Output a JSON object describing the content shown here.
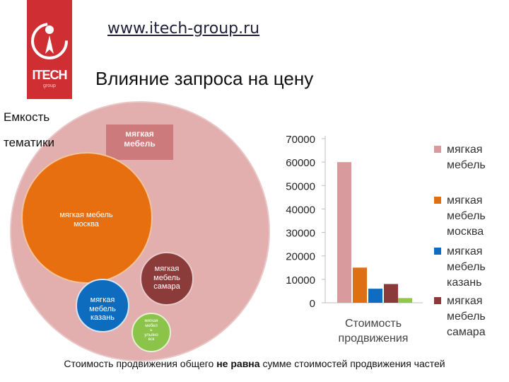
{
  "header": {
    "url": "www.itech-group.ru",
    "logo_text": "ITECH",
    "logo_sub": "group"
  },
  "title": "Влияние запроса на цену",
  "capacity_label": [
    "Емкость",
    "тематики"
  ],
  "circles": {
    "outer_label": [
      "мягкая",
      "мебель"
    ],
    "moscow_label": [
      "мягкая мебель",
      "москва"
    ],
    "kazan_label": [
      "мягкая",
      "мебель",
      "казань"
    ],
    "samara_label": [
      "мягкая",
      "мебель",
      "самара"
    ],
    "ulyanovsk_label": [
      "мягкая",
      "мебел",
      "ь",
      "ульяно",
      "вск"
    ]
  },
  "chart_data": {
    "type": "bar",
    "categories": [
      "Стоимость продвижения"
    ],
    "series": [
      {
        "name": "мягкая мебель",
        "values": [
          60000
        ],
        "color": "#d89a9c"
      },
      {
        "name": "мягкая мебель москва",
        "values": [
          15000
        ],
        "color": "#e06f12"
      },
      {
        "name": "мягкая мебель казань",
        "values": [
          6000
        ],
        "color": "#0f6cc0"
      },
      {
        "name": "мягкая мебель самара",
        "values": [
          8000
        ],
        "color": "#8b3a3a"
      },
      {
        "name": "",
        "values": [
          2000
        ],
        "color": "#92c84a"
      }
    ],
    "ylim": [
      0,
      70000
    ],
    "yticks": [
      0,
      10000,
      20000,
      30000,
      40000,
      50000,
      60000,
      70000
    ],
    "xlabel_lines": [
      "Стоимость",
      "продвижения"
    ],
    "legend": "right"
  },
  "footer": {
    "before": "Стоимость продвижения общего",
    "bold": "не равна",
    "after": "сумме стоимостей продвижения частей"
  }
}
